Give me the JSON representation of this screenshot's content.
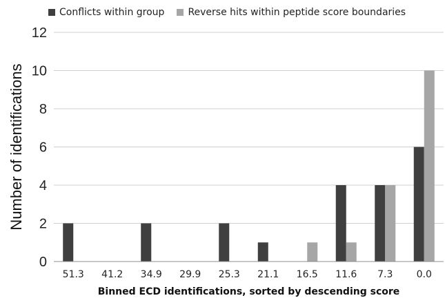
{
  "chart_data": {
    "type": "bar",
    "categories": [
      "51.3",
      "41.2",
      "34.9",
      "29.9",
      "25.3",
      "21.1",
      "16.5",
      "11.6",
      "7.3",
      "0.0"
    ],
    "series": [
      {
        "name": "Conflicts within group",
        "color": "#3f3f3f",
        "values": [
          2,
          0,
          2,
          0,
          2,
          1,
          0,
          4,
          4,
          6
        ]
      },
      {
        "name": "Reverse hits within peptide score boundaries",
        "color": "#a6a6a6",
        "values": [
          0,
          0,
          0,
          0,
          0,
          0,
          1,
          1,
          4,
          10
        ]
      }
    ],
    "xlabel": "Binned ECD identifications, sorted by descending score",
    "ylabel": "Number of identifications",
    "ylim": [
      0,
      12
    ],
    "yticks": [
      "0",
      "2",
      "4",
      "6",
      "8",
      "10",
      "12"
    ],
    "grid": true,
    "legend": "top"
  }
}
